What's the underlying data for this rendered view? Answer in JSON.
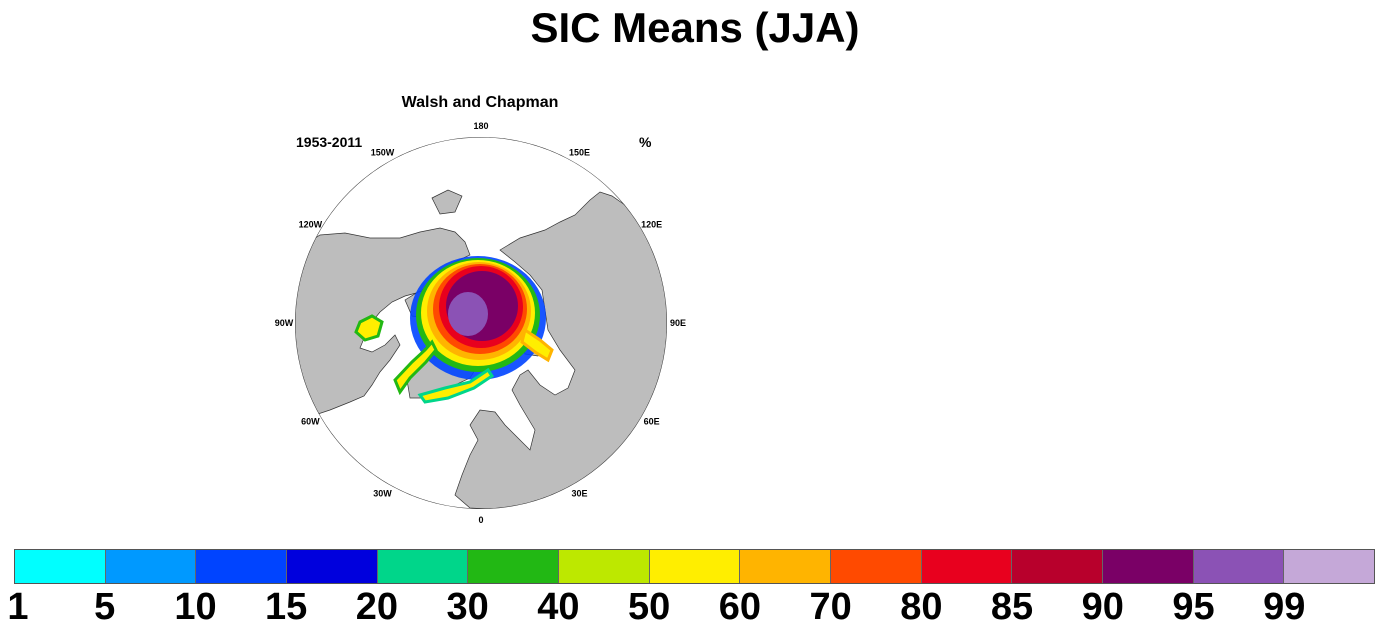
{
  "title": "SIC Means (JJA)",
  "map": {
    "subtitle": "Walsh and Chapman",
    "period": "1953-2011",
    "units": "%",
    "projection": "polar-stereographic-north",
    "longitude_labels": [
      "180",
      "150E",
      "120E",
      "90E",
      "60E",
      "30E",
      "0",
      "30W",
      "60W",
      "90W",
      "120W",
      "150W"
    ]
  },
  "colorbar": {
    "labels": [
      "1",
      "5",
      "10",
      "15",
      "20",
      "30",
      "40",
      "50",
      "60",
      "70",
      "80",
      "85",
      "90",
      "95",
      "99"
    ],
    "colors": [
      "#00ffff",
      "#0099ff",
      "#0044ff",
      "#0000dd",
      "#00d68a",
      "#22b814",
      "#bde800",
      "#ffee00",
      "#ffb400",
      "#ff4a00",
      "#e8001e",
      "#b8002c",
      "#7a0066",
      "#8b52b5",
      "#c5a8d8"
    ]
  }
}
